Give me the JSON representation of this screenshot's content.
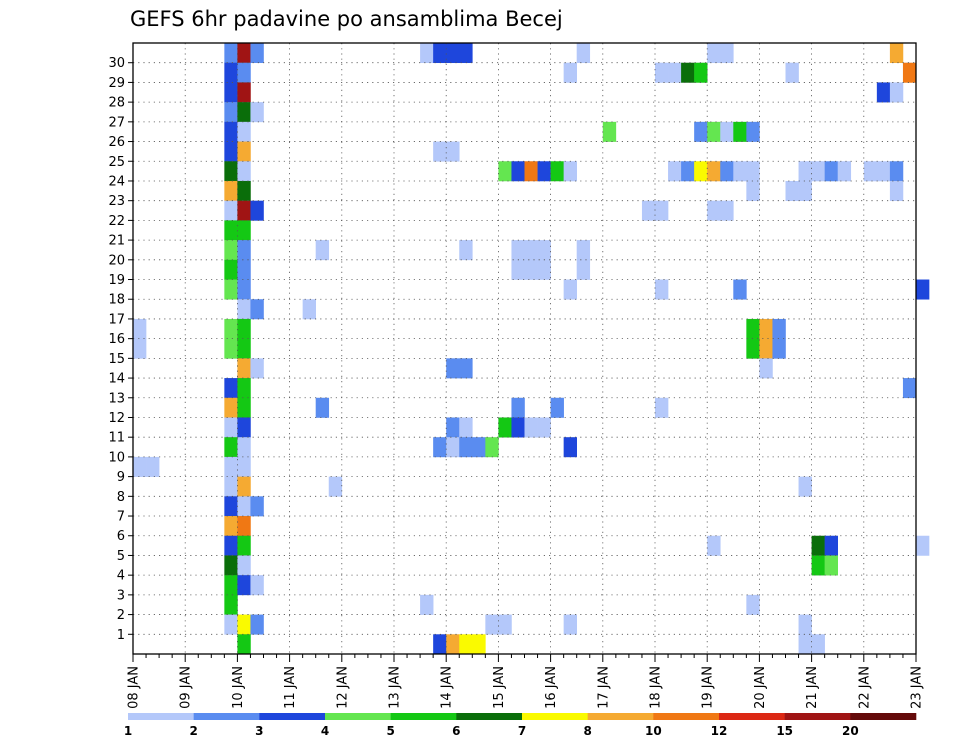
{
  "chart_data": {
    "type": "heatmap",
    "title": "GEFS 6hr padavine po ansamblima Becej",
    "x_labels": [
      "08 JAN",
      "09 JAN",
      "10 JAN",
      "11 JAN",
      "12 JAN",
      "13 JAN",
      "14 JAN",
      "15 JAN",
      "16 JAN",
      "17 JAN",
      "18 JAN",
      "19 JAN",
      "20 JAN",
      "21 JAN",
      "22 JAN",
      "23 JAN"
    ],
    "steps_per_day": 4,
    "y_labels": [
      "1",
      "2",
      "3",
      "4",
      "5",
      "6",
      "7",
      "8",
      "9",
      "10",
      "11",
      "12",
      "13",
      "14",
      "15",
      "16",
      "17",
      "18",
      "19",
      "20",
      "21",
      "22",
      "23",
      "24",
      "25",
      "26",
      "27",
      "28",
      "29",
      "30"
    ],
    "grid": true,
    "legend": {
      "position": "bottom",
      "labels": [
        "1",
        "2",
        "3",
        "4",
        "5",
        "6",
        "7",
        "8",
        "10",
        "12",
        "15",
        "20"
      ],
      "colors": [
        "#b4c8fa",
        "#5a8cf0",
        "#1e46dc",
        "#64e650",
        "#14c814",
        "#0a6e0a",
        "#fafa00",
        "#f5aa32",
        "#f07814",
        "#dc2814",
        "#a01414",
        "#640a0a"
      ]
    },
    "levels": [
      1,
      2,
      3,
      4,
      5,
      6,
      7,
      8,
      10,
      12,
      15,
      20
    ],
    "cells": [
      [
        7,
        30,
        2
      ],
      [
        8,
        30,
        15
      ],
      [
        9,
        30,
        2
      ],
      [
        22,
        30,
        1
      ],
      [
        23,
        30,
        3
      ],
      [
        24,
        30,
        3
      ],
      [
        25,
        30,
        3
      ],
      [
        34,
        30,
        1
      ],
      [
        44,
        30,
        1
      ],
      [
        45,
        30,
        1
      ],
      [
        58,
        30,
        8
      ],
      [
        7,
        29,
        3
      ],
      [
        8,
        29,
        2
      ],
      [
        33,
        29,
        1
      ],
      [
        40,
        29,
        1
      ],
      [
        41,
        29,
        1
      ],
      [
        42,
        29,
        6
      ],
      [
        43,
        29,
        5
      ],
      [
        50,
        29,
        1
      ],
      [
        59,
        29,
        10
      ],
      [
        7,
        28,
        3
      ],
      [
        8,
        28,
        15
      ],
      [
        57,
        28,
        3
      ],
      [
        58,
        28,
        1
      ],
      [
        7,
        27,
        2
      ],
      [
        8,
        27,
        6
      ],
      [
        9,
        27,
        1
      ],
      [
        7,
        26,
        3
      ],
      [
        8,
        26,
        1
      ],
      [
        36,
        26,
        4
      ],
      [
        43,
        26,
        2
      ],
      [
        44,
        26,
        4
      ],
      [
        45,
        26,
        1
      ],
      [
        46,
        26,
        5
      ],
      [
        47,
        26,
        2
      ],
      [
        7,
        25,
        3
      ],
      [
        8,
        25,
        8
      ],
      [
        23,
        25,
        1
      ],
      [
        24,
        25,
        1
      ],
      [
        7,
        24,
        6
      ],
      [
        8,
        24,
        1
      ],
      [
        28,
        24,
        4
      ],
      [
        29,
        24,
        3
      ],
      [
        30,
        24,
        10
      ],
      [
        31,
        24,
        3
      ],
      [
        32,
        24,
        5
      ],
      [
        33,
        24,
        1
      ],
      [
        41,
        24,
        1
      ],
      [
        42,
        24,
        2
      ],
      [
        43,
        24,
        7
      ],
      [
        44,
        24,
        8
      ],
      [
        45,
        24,
        2
      ],
      [
        46,
        24,
        1
      ],
      [
        47,
        24,
        1
      ],
      [
        51,
        24,
        1
      ],
      [
        52,
        24,
        1
      ],
      [
        53,
        24,
        2
      ],
      [
        54,
        24,
        1
      ],
      [
        56,
        24,
        1
      ],
      [
        57,
        24,
        1
      ],
      [
        58,
        24,
        2
      ],
      [
        7,
        23,
        8
      ],
      [
        8,
        23,
        6
      ],
      [
        47,
        23,
        1
      ],
      [
        50,
        23,
        1
      ],
      [
        51,
        23,
        1
      ],
      [
        58,
        23,
        1
      ],
      [
        7,
        22,
        1
      ],
      [
        8,
        22,
        15
      ],
      [
        9,
        22,
        3
      ],
      [
        39,
        22,
        1
      ],
      [
        40,
        22,
        1
      ],
      [
        44,
        22,
        1
      ],
      [
        45,
        22,
        1
      ],
      [
        7,
        21,
        5
      ],
      [
        8,
        21,
        5
      ],
      [
        7,
        20,
        4
      ],
      [
        8,
        20,
        2
      ],
      [
        14,
        20,
        1
      ],
      [
        25,
        20,
        1
      ],
      [
        29,
        20,
        1
      ],
      [
        30,
        20,
        1
      ],
      [
        31,
        20,
        1
      ],
      [
        34,
        20,
        1
      ],
      [
        7,
        19,
        5
      ],
      [
        8,
        19,
        2
      ],
      [
        29,
        19,
        1
      ],
      [
        30,
        19,
        1
      ],
      [
        31,
        19,
        1
      ],
      [
        34,
        19,
        1
      ],
      [
        7,
        18,
        4
      ],
      [
        8,
        18,
        2
      ],
      [
        33,
        18,
        1
      ],
      [
        40,
        18,
        1
      ],
      [
        46,
        18,
        2
      ],
      [
        60,
        18,
        3
      ],
      [
        8,
        17,
        1
      ],
      [
        9,
        17,
        2
      ],
      [
        13,
        17,
        1
      ],
      [
        0,
        16,
        1
      ],
      [
        7,
        16,
        4
      ],
      [
        8,
        16,
        5
      ],
      [
        47,
        16,
        5
      ],
      [
        48,
        16,
        8
      ],
      [
        49,
        16,
        2
      ],
      [
        0,
        15,
        1
      ],
      [
        7,
        15,
        4
      ],
      [
        8,
        15,
        5
      ],
      [
        47,
        15,
        5
      ],
      [
        48,
        15,
        8
      ],
      [
        49,
        15,
        2
      ],
      [
        8,
        14,
        8
      ],
      [
        9,
        14,
        1
      ],
      [
        24,
        14,
        2
      ],
      [
        25,
        14,
        2
      ],
      [
        48,
        14,
        1
      ],
      [
        7,
        13,
        3
      ],
      [
        8,
        13,
        5
      ],
      [
        59,
        13,
        2
      ],
      [
        7,
        12,
        8
      ],
      [
        8,
        12,
        5
      ],
      [
        14,
        12,
        2
      ],
      [
        29,
        12,
        2
      ],
      [
        32,
        12,
        2
      ],
      [
        40,
        12,
        1
      ],
      [
        7,
        11,
        1
      ],
      [
        8,
        11,
        3
      ],
      [
        24,
        11,
        2
      ],
      [
        25,
        11,
        1
      ],
      [
        28,
        11,
        5
      ],
      [
        29,
        11,
        3
      ],
      [
        30,
        11,
        1
      ],
      [
        31,
        11,
        1
      ],
      [
        7,
        10,
        5
      ],
      [
        8,
        10,
        1
      ],
      [
        23,
        10,
        2
      ],
      [
        24,
        10,
        1
      ],
      [
        25,
        10,
        2
      ],
      [
        26,
        10,
        2
      ],
      [
        27,
        10,
        4
      ],
      [
        33,
        10,
        3
      ],
      [
        0,
        9,
        1
      ],
      [
        1,
        9,
        1
      ],
      [
        7,
        9,
        1
      ],
      [
        8,
        9,
        1
      ],
      [
        7,
        8,
        1
      ],
      [
        8,
        8,
        8
      ],
      [
        15,
        8,
        1
      ],
      [
        51,
        8,
        1
      ],
      [
        7,
        7,
        3
      ],
      [
        8,
        7,
        1
      ],
      [
        9,
        7,
        2
      ],
      [
        7,
        6,
        8
      ],
      [
        8,
        6,
        10
      ],
      [
        7,
        5,
        3
      ],
      [
        8,
        5,
        5
      ],
      [
        44,
        5,
        1
      ],
      [
        52,
        5,
        6
      ],
      [
        53,
        5,
        3
      ],
      [
        60,
        5,
        1
      ],
      [
        7,
        4,
        6
      ],
      [
        8,
        4,
        1
      ],
      [
        52,
        4,
        5
      ],
      [
        53,
        4,
        4
      ],
      [
        7,
        3,
        5
      ],
      [
        8,
        3,
        3
      ],
      [
        9,
        3,
        1
      ],
      [
        7,
        2,
        5
      ],
      [
        22,
        2,
        1
      ],
      [
        47,
        2,
        1
      ],
      [
        7,
        1,
        1
      ],
      [
        8,
        1,
        7
      ],
      [
        9,
        1,
        2
      ],
      [
        27,
        1,
        1
      ],
      [
        28,
        1,
        1
      ],
      [
        33,
        1,
        1
      ],
      [
        51,
        1,
        1
      ],
      [
        8,
        0,
        5
      ],
      [
        23,
        0,
        3
      ],
      [
        24,
        0,
        8
      ],
      [
        25,
        0,
        7
      ],
      [
        26,
        0,
        7
      ],
      [
        51,
        0,
        1
      ],
      [
        52,
        0,
        1
      ]
    ]
  }
}
